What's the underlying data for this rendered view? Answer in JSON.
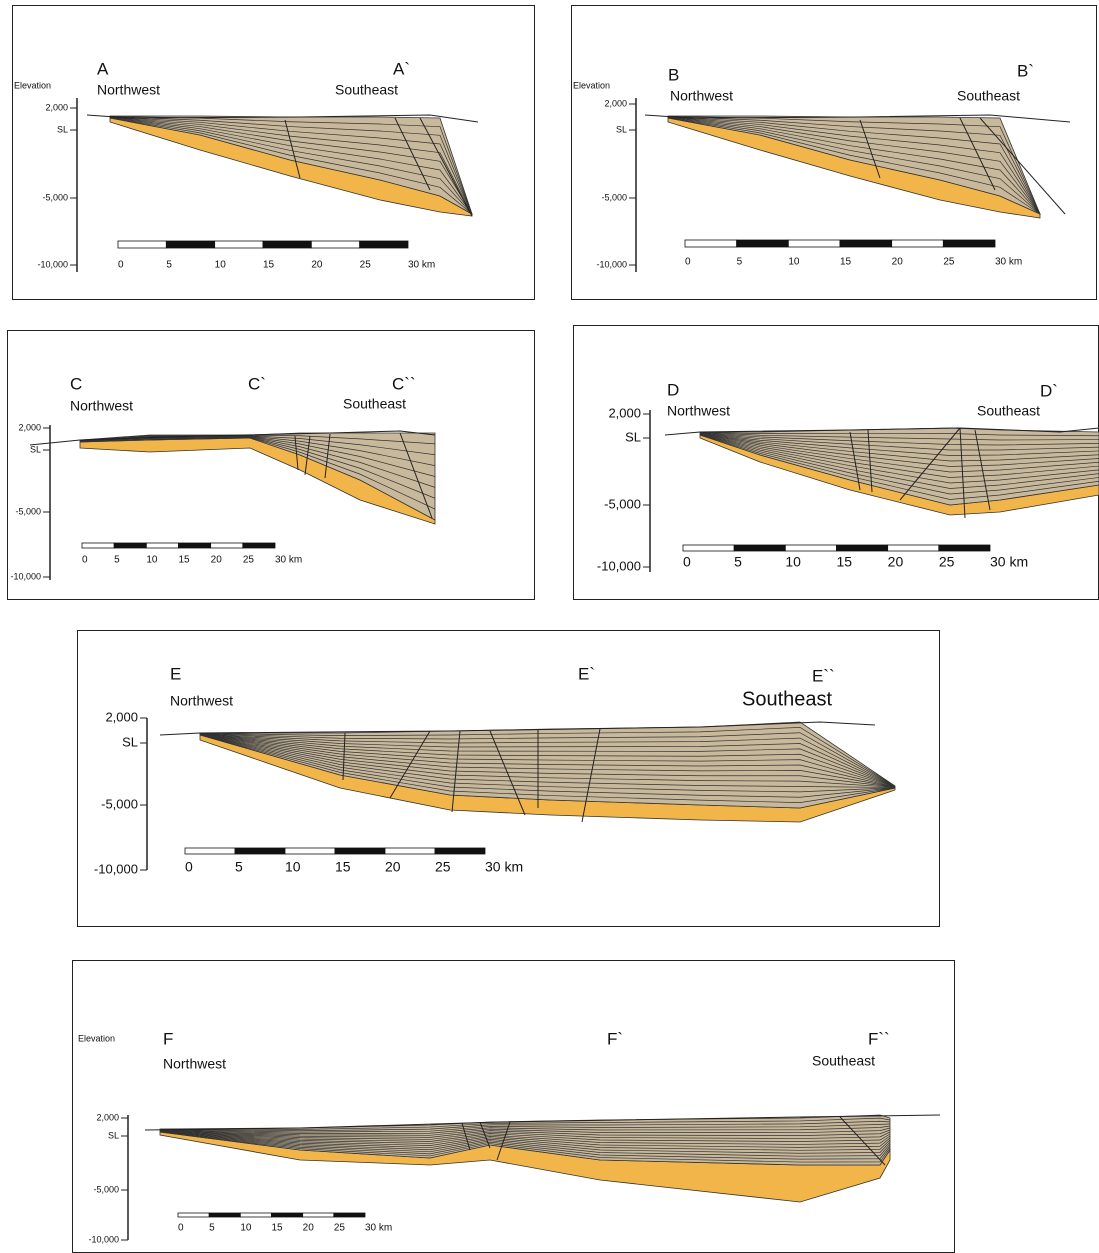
{
  "panels": [
    {
      "labels": [
        "A",
        "A`"
      ],
      "directions": [
        "Northwest",
        "Southeast"
      ],
      "elevation_title": "Elevation",
      "elevation_ticks": [
        "2,000",
        "SL",
        "-5,000",
        "-10,000"
      ],
      "scale_ticks": [
        "0",
        "5",
        "10",
        "15",
        "20",
        "25",
        "30 km"
      ]
    },
    {
      "labels": [
        "B",
        "B`"
      ],
      "directions": [
        "Northwest",
        "Southeast"
      ],
      "elevation_title": "Elevation",
      "elevation_ticks": [
        "2,000",
        "SL",
        "-5,000",
        "-10,000"
      ],
      "scale_ticks": [
        "0",
        "5",
        "10",
        "15",
        "20",
        "25",
        "30 km"
      ]
    },
    {
      "labels": [
        "C",
        "C`",
        "C``"
      ],
      "directions": [
        "Northwest",
        "Southeast"
      ],
      "elevation_ticks": [
        "2,000",
        "SL",
        "-5,000",
        "-10,000"
      ],
      "scale_ticks": [
        "0",
        "5",
        "10",
        "15",
        "20",
        "25",
        "30 km"
      ]
    },
    {
      "labels": [
        "D",
        "D`"
      ],
      "directions": [
        "Northwest",
        "Southeast"
      ],
      "elevation_ticks": [
        "2,000",
        "SL",
        "-5,000",
        "-10,000"
      ],
      "scale_ticks": [
        "0",
        "5",
        "10",
        "15",
        "20",
        "25",
        "30 km"
      ]
    },
    {
      "labels": [
        "E",
        "E`",
        "E``"
      ],
      "directions": [
        "Northwest",
        "Southeast"
      ],
      "elevation_ticks": [
        "2,000",
        "SL",
        "-5,000",
        "-10,000"
      ],
      "scale_ticks": [
        "0",
        "5",
        "10",
        "15",
        "20",
        "25",
        "30 km"
      ]
    },
    {
      "labels": [
        "F",
        "F`",
        "F``"
      ],
      "directions": [
        "Northwest",
        "Southeast"
      ],
      "elevation_title": "Elevation",
      "elevation_ticks": [
        "2,000",
        "SL",
        "-5,000",
        "-10,000"
      ],
      "scale_ticks": [
        "0",
        "5",
        "10",
        "15",
        "20",
        "25",
        "30 km"
      ]
    }
  ]
}
